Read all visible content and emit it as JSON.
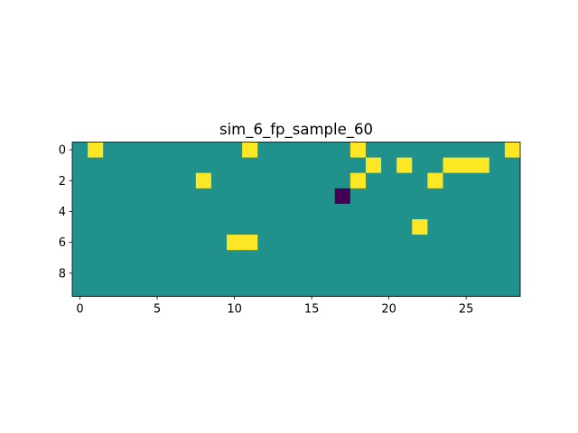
{
  "chart_data": {
    "type": "heatmap",
    "title": "sim_6_fp_sample_60",
    "xlabel": "",
    "ylabel": "",
    "n_rows": 10,
    "n_cols": 29,
    "xlim": [
      -0.5,
      28.5
    ],
    "ylim": [
      9.5,
      -0.5
    ],
    "x_ticks": [
      0,
      5,
      10,
      15,
      20,
      25
    ],
    "y_ticks": [
      0,
      2,
      4,
      6,
      8
    ],
    "colormap": "viridis",
    "value_range": [
      -1,
      1
    ],
    "default_value": 0,
    "colors": {
      "-1": "#440154",
      "0": "#21918c",
      "1": "#fde725"
    },
    "cells": [
      {
        "row": 0,
        "col": 1,
        "value": 1
      },
      {
        "row": 0,
        "col": 11,
        "value": 1
      },
      {
        "row": 0,
        "col": 18,
        "value": 1
      },
      {
        "row": 0,
        "col": 28,
        "value": 1
      },
      {
        "row": 1,
        "col": 19,
        "value": 1
      },
      {
        "row": 1,
        "col": 21,
        "value": 1
      },
      {
        "row": 1,
        "col": 24,
        "value": 1
      },
      {
        "row": 1,
        "col": 25,
        "value": 1
      },
      {
        "row": 1,
        "col": 26,
        "value": 1
      },
      {
        "row": 2,
        "col": 8,
        "value": 1
      },
      {
        "row": 2,
        "col": 18,
        "value": 1
      },
      {
        "row": 2,
        "col": 23,
        "value": 1
      },
      {
        "row": 3,
        "col": 17,
        "value": -1
      },
      {
        "row": 5,
        "col": 22,
        "value": 1
      },
      {
        "row": 6,
        "col": 10,
        "value": 1
      },
      {
        "row": 6,
        "col": 11,
        "value": 1
      }
    ]
  }
}
